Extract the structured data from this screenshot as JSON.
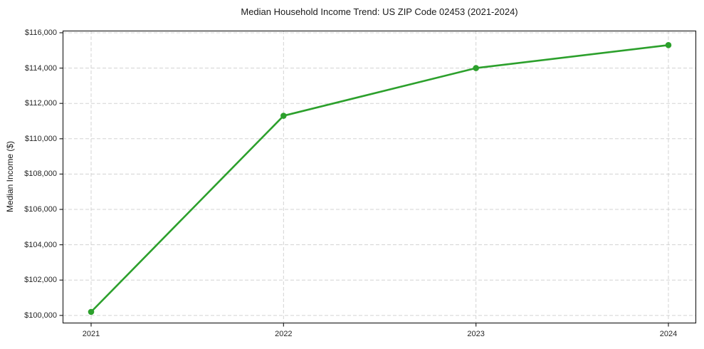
{
  "chart_data": {
    "type": "line",
    "title": "Median Household Income Trend: US ZIP Code 02453 (2021-2024)",
    "xlabel": "",
    "ylabel": "Median Income ($)",
    "categories": [
      "2021",
      "2022",
      "2023",
      "2024"
    ],
    "series": [
      {
        "name": "Median Household Income",
        "values": [
          100200,
          111300,
          114000,
          115300
        ]
      }
    ],
    "yticks": [
      100000,
      102000,
      104000,
      106000,
      108000,
      110000,
      112000,
      114000,
      116000
    ],
    "ytick_labels": [
      "$100,000",
      "$102,000",
      "$104,000",
      "$106,000",
      "$108,000",
      "$110,000",
      "$112,000",
      "$114,000",
      "$116,000"
    ],
    "ylim": [
      99550,
      116120
    ],
    "grid": true,
    "legend_position": "none",
    "colors": {
      "line": "#2ca02c",
      "marker": "#2ca02c",
      "grid": "#cccccc",
      "axis": "#262626",
      "text": "#1a1a1a"
    }
  }
}
